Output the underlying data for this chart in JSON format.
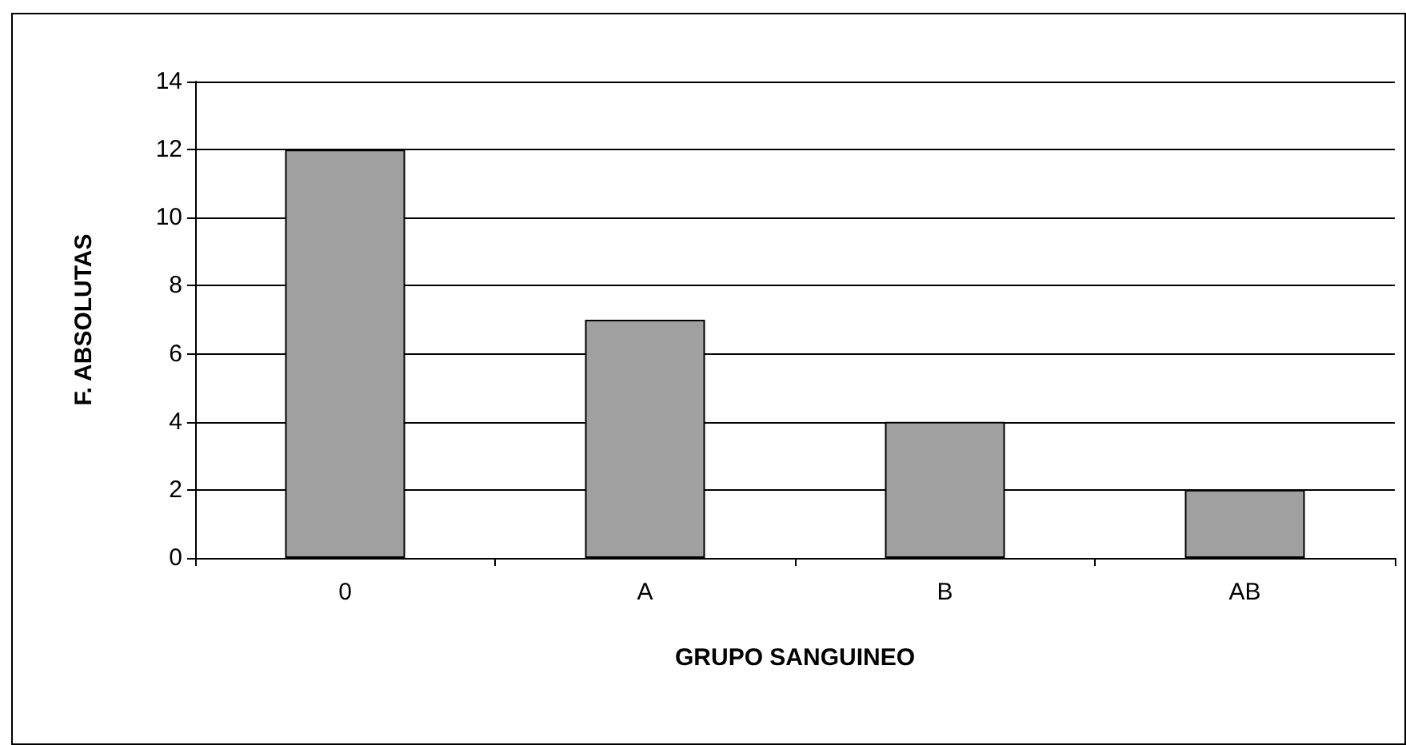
{
  "chart_data": {
    "type": "bar",
    "xlabel": "GRUPO SANGUINEO",
    "ylabel": "F. ABSOLUTAS",
    "categories": [
      "0",
      "A",
      "B",
      "AB"
    ],
    "values": [
      12,
      7,
      4,
      2
    ],
    "color": "#a0a0a0",
    "ylim": [
      0,
      14
    ],
    "yticks": [
      0,
      2,
      4,
      6,
      8,
      10,
      12,
      14
    ],
    "grid": "y"
  }
}
